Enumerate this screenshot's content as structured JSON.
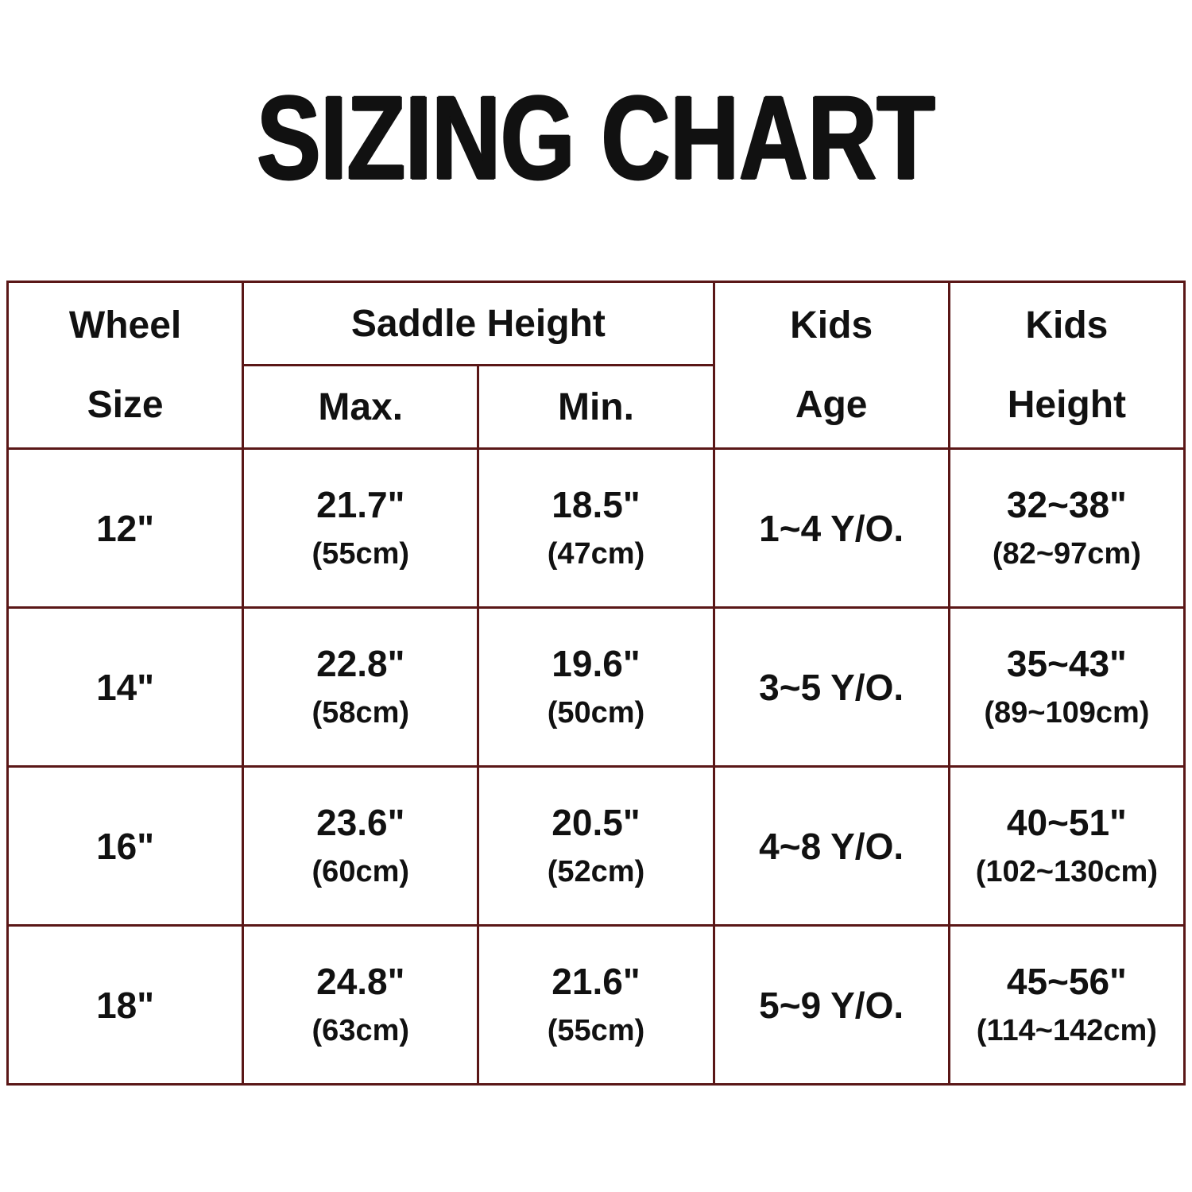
{
  "colors": {
    "border": "#5a1717",
    "text": "#111111",
    "background": "#ffffff"
  },
  "title": "SIZING CHART",
  "table": {
    "header": {
      "wheel": [
        "Wheel",
        "Size"
      ],
      "saddle_height": "Saddle Height",
      "max": "Max.",
      "min": "Min.",
      "kids_age": [
        "Kids",
        "Age"
      ],
      "kids_height": [
        "Kids",
        "Height"
      ]
    },
    "rows": [
      {
        "wheel": "12\"",
        "max_in": "21.7\"",
        "max_cm": "(55cm)",
        "min_in": "18.5\"",
        "min_cm": "(47cm)",
        "age": "1~4 Y/O.",
        "height_in": "32~38\"",
        "height_cm": "(82~97cm)"
      },
      {
        "wheel": "14\"",
        "max_in": "22.8\"",
        "max_cm": "(58cm)",
        "min_in": "19.6\"",
        "min_cm": "(50cm)",
        "age": "3~5 Y/O.",
        "height_in": "35~43\"",
        "height_cm": "(89~109cm)"
      },
      {
        "wheel": "16\"",
        "max_in": "23.6\"",
        "max_cm": "(60cm)",
        "min_in": "20.5\"",
        "min_cm": "(52cm)",
        "age": "4~8 Y/O.",
        "height_in": "40~51\"",
        "height_cm": "(102~130cm)"
      },
      {
        "wheel": "18\"",
        "max_in": "24.8\"",
        "max_cm": "(63cm)",
        "min_in": "21.6\"",
        "min_cm": "(55cm)",
        "age": "5~9 Y/O.",
        "height_in": "45~56\"",
        "height_cm": "(114~142cm)"
      }
    ]
  },
  "chart_data": {
    "type": "table",
    "title": "SIZING CHART",
    "columns": [
      "Wheel Size",
      "Saddle Height Max.",
      "Saddle Height Min.",
      "Kids Age",
      "Kids Height"
    ],
    "rows": [
      [
        "12\"",
        "21.7\" (55cm)",
        "18.5\" (47cm)",
        "1~4 Y/O.",
        "32~38\" (82~97cm)"
      ],
      [
        "14\"",
        "22.8\" (58cm)",
        "19.6\" (50cm)",
        "3~5 Y/O.",
        "35~43\" (89~109cm)"
      ],
      [
        "16\"",
        "23.6\" (60cm)",
        "20.5\" (52cm)",
        "4~8 Y/O.",
        "40~51\" (102~130cm)"
      ],
      [
        "18\"",
        "24.8\" (63cm)",
        "21.6\" (55cm)",
        "5~9 Y/O.",
        "45~56\" (114~142cm)"
      ]
    ]
  }
}
